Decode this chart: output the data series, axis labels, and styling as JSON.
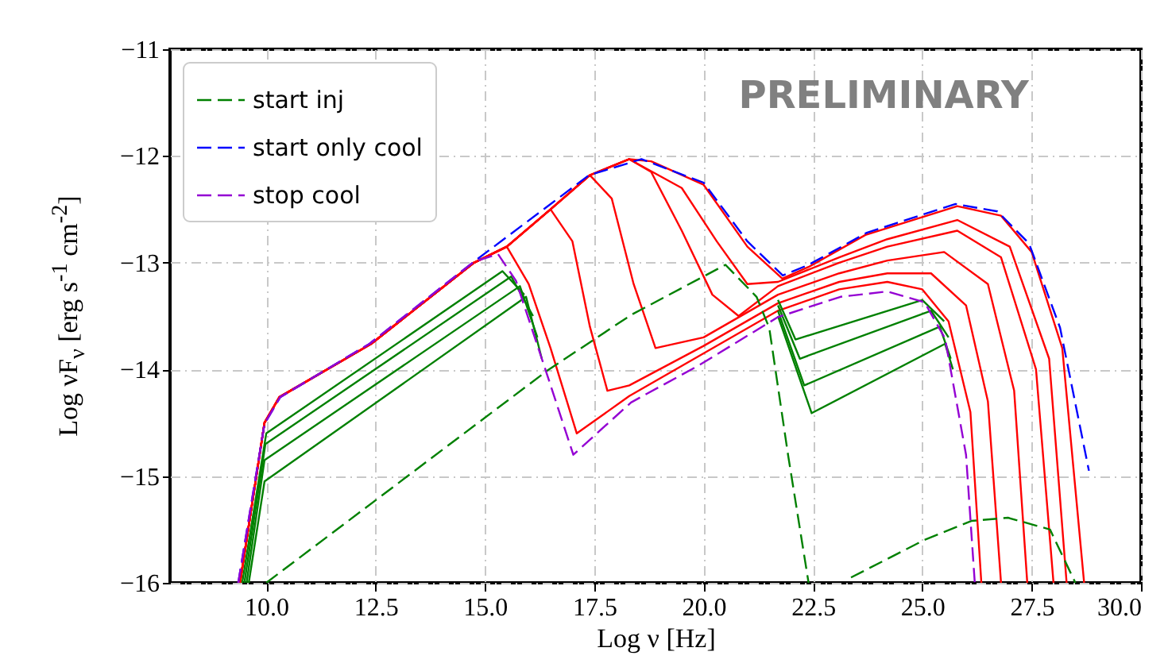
{
  "chart_data": {
    "type": "line",
    "xlabel": "Log ν [Hz]",
    "ylabel": "Log νF$_{ν}$ [erg s$^{-1}$ cm$^{-2}$]",
    "annotations": [
      "PRELIMINARY"
    ],
    "xlim": [
      7.8,
      30
    ],
    "ylim": [
      -16,
      -11
    ],
    "xticks": [
      {
        "value": 10,
        "label": "10.0"
      },
      {
        "value": 12.5,
        "label": "12.5"
      },
      {
        "value": 15,
        "label": "15.0"
      },
      {
        "value": 17.5,
        "label": "17.5"
      },
      {
        "value": 20,
        "label": "20.0"
      },
      {
        "value": 22.5,
        "label": "22.5"
      },
      {
        "value": 25,
        "label": "25.0"
      },
      {
        "value": 27.5,
        "label": "27.5"
      },
      {
        "value": 30,
        "label": "30.0"
      }
    ],
    "yticks": [
      -16,
      -15,
      -14,
      -13,
      -12,
      -11
    ],
    "grid": true,
    "legend": "top left",
    "series": [
      {
        "color": "#ff0000",
        "line_style": "solid",
        "x": [
          9.4,
          9.96,
          10.3,
          12.4,
          14.75,
          15.5,
          16.0,
          16.5,
          17.1,
          18.3,
          20,
          21.7,
          23.1,
          24.2,
          25.0,
          25.6,
          26.1,
          26.35
        ],
        "values": [
          -16,
          -14.5,
          -14.26,
          -13.76,
          -13.0,
          -12.85,
          -13.2,
          -13.8,
          -14.6,
          -14.25,
          -13.85,
          -13.45,
          -13.25,
          -13.18,
          -13.25,
          -13.55,
          -14.4,
          -16
        ]
      },
      {
        "color": "#ff0000",
        "line_style": "solid",
        "x": [
          9.4,
          9.96,
          10.3,
          12.4,
          14.75,
          15.5,
          16.5,
          17.0,
          17.4,
          17.8,
          18.3,
          20,
          21.7,
          23.1,
          24.2,
          25.2,
          26.0,
          26.5,
          26.8
        ],
        "values": [
          -16,
          -14.5,
          -14.26,
          -13.76,
          -13.0,
          -12.85,
          -12.5,
          -12.8,
          -13.6,
          -14.2,
          -14.15,
          -13.78,
          -13.38,
          -13.18,
          -13.1,
          -13.1,
          -13.4,
          -14.3,
          -16
        ]
      },
      {
        "color": "#ff0000",
        "line_style": "solid",
        "x": [
          9.4,
          9.96,
          10.3,
          12.4,
          14.75,
          15.5,
          16.5,
          17.4,
          17.9,
          18.4,
          18.9,
          20,
          21.7,
          23.1,
          24.2,
          25.5,
          26.5,
          27.1,
          27.4
        ],
        "values": [
          -16,
          -14.5,
          -14.26,
          -13.76,
          -13.0,
          -12.85,
          -12.5,
          -12.18,
          -12.4,
          -13.2,
          -13.8,
          -13.7,
          -13.3,
          -13.1,
          -12.98,
          -12.9,
          -13.2,
          -14.2,
          -16
        ]
      },
      {
        "color": "#ff0000",
        "line_style": "solid",
        "x": [
          9.4,
          9.96,
          10.3,
          12.4,
          14.75,
          15.5,
          16.5,
          17.4,
          18.3,
          18.8,
          19.5,
          20.2,
          20.8,
          21.7,
          23.1,
          24.2,
          25.8,
          26.8,
          27.6,
          28.0
        ],
        "values": [
          -16,
          -14.5,
          -14.26,
          -13.76,
          -13.0,
          -12.85,
          -12.5,
          -12.18,
          -12.03,
          -12.15,
          -12.7,
          -13.3,
          -13.5,
          -13.22,
          -13.0,
          -12.85,
          -12.7,
          -12.95,
          -14.0,
          -16
        ]
      },
      {
        "color": "#ff0000",
        "line_style": "solid",
        "x": [
          9.4,
          9.96,
          10.3,
          12.4,
          14.75,
          15.5,
          16.5,
          17.4,
          18.3,
          19.5,
          20.3,
          21.0,
          21.7,
          23.1,
          24.2,
          25.8,
          27.0,
          27.9,
          28.3
        ],
        "values": [
          -16,
          -14.5,
          -14.26,
          -13.76,
          -13.0,
          -12.85,
          -12.5,
          -12.18,
          -12.03,
          -12.3,
          -12.8,
          -13.2,
          -13.18,
          -12.95,
          -12.78,
          -12.6,
          -12.85,
          -13.9,
          -16
        ]
      },
      {
        "color": "#ff0000",
        "line_style": "solid",
        "x": [
          9.4,
          9.96,
          10.3,
          12.4,
          14.75,
          15.5,
          16.5,
          17.4,
          18.3,
          18.8,
          20,
          21,
          21.8,
          22.4,
          23.7,
          25.8,
          26.8,
          27.5,
          28.2,
          28.7
        ],
        "values": [
          -16,
          -14.5,
          -14.26,
          -13.76,
          -13.0,
          -12.85,
          -12.5,
          -12.18,
          -12.03,
          -12.05,
          -12.27,
          -12.85,
          -13.15,
          -13.04,
          -12.74,
          -12.47,
          -12.56,
          -12.9,
          -13.8,
          -16
        ]
      },
      {
        "color": "#008000",
        "line_style": "solid",
        "x": [
          9.6,
          9.96,
          15.94,
          16.3,
          null,
          21.7,
          22.47,
          25.52,
          25.7
        ],
        "values": [
          -16,
          -15.05,
          -13.32,
          -13.9,
          null,
          -13.5,
          -14.41,
          -13.76,
          -14.0
        ]
      },
      {
        "color": "#008000",
        "line_style": "solid",
        "x": [
          9.55,
          9.96,
          15.8,
          16.2,
          null,
          21.7,
          22.3,
          25.4,
          25.65
        ],
        "values": [
          -16,
          -14.85,
          -13.22,
          -13.7,
          null,
          -13.45,
          -14.15,
          -13.6,
          -13.9
        ]
      },
      {
        "color": "#008000",
        "line_style": "solid",
        "x": [
          9.5,
          9.98,
          15.6,
          16.1,
          null,
          21.7,
          22.2,
          25.2,
          25.6
        ],
        "values": [
          -16,
          -14.7,
          -13.13,
          -13.5,
          null,
          -13.4,
          -13.9,
          -13.45,
          -13.7
        ]
      },
      {
        "color": "#008000",
        "line_style": "solid",
        "x": [
          9.45,
          10.0,
          15.4,
          15.9,
          null,
          21.7,
          22.1,
          25.0,
          25.5
        ],
        "values": [
          -16,
          -14.6,
          -13.08,
          -13.3,
          null,
          -13.35,
          -13.72,
          -13.35,
          -13.55
        ]
      },
      {
        "name": "start inj",
        "color": "#008000",
        "line_style": "dashed",
        "x": [
          10.0,
          16.43,
          18.34,
          20.5,
          21.21,
          21.5,
          21.93,
          22.4,
          null,
          23.37,
          25.04,
          26.12,
          26.96,
          27.92,
          28.5
        ],
        "values": [
          -16,
          -14.01,
          -13.49,
          -13.02,
          -13.32,
          -13.61,
          -14.8,
          -16,
          null,
          -15.95,
          -15.6,
          -15.42,
          -15.39,
          -15.5,
          -16
        ]
      },
      {
        "name": "start only cool",
        "color": "#0000ff",
        "line_style": "dashed",
        "x": [
          9.36,
          9.96,
          10.32,
          12.36,
          14.75,
          17.38,
          18.58,
          20,
          21,
          21.81,
          22.4,
          23.73,
          25.76,
          26.72,
          27.44,
          28.15,
          28.81
        ],
        "values": [
          -16,
          -14.51,
          -14.26,
          -13.76,
          -12.99,
          -12.18,
          -12.03,
          -12.25,
          -12.8,
          -13.12,
          -13.02,
          -12.72,
          -12.45,
          -12.52,
          -12.82,
          -13.61,
          -14.95
        ]
      },
      {
        "name": "stop cool",
        "color": "#9400d3",
        "line_style": "dashed",
        "x": [
          9.36,
          9.96,
          10.32,
          12.36,
          14.75,
          15.3,
          15.71,
          16.43,
          17.02,
          18.34,
          19.9,
          21.7,
          23.13,
          24.2,
          25.05,
          25.52,
          26.0,
          26.2
        ],
        "values": [
          -16,
          -14.51,
          -14.26,
          -13.76,
          -12.99,
          -12.92,
          -13.17,
          -14.06,
          -14.8,
          -14.31,
          -13.96,
          -13.51,
          -13.32,
          -13.27,
          -13.37,
          -13.71,
          -14.8,
          -16
        ]
      }
    ]
  }
}
